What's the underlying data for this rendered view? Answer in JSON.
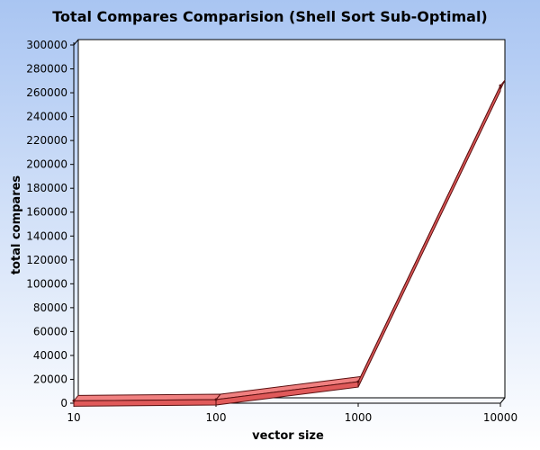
{
  "chart_data": {
    "type": "line",
    "title": "Total Compares Comparision (Shell Sort Sub-Optimal)",
    "xlabel": "vector size",
    "ylabel": "total compares",
    "x_scale": "log",
    "categories": [
      "10",
      "100",
      "1000",
      "10000"
    ],
    "x": [
      10,
      100,
      1000,
      10000
    ],
    "y_ticks": [
      0,
      20000,
      40000,
      60000,
      80000,
      100000,
      120000,
      140000,
      160000,
      180000,
      200000,
      220000,
      240000,
      260000,
      280000,
      300000
    ],
    "ylim": [
      0,
      300000
    ],
    "series": [
      {
        "values": [
          2000,
          3000,
          18000,
          266000
        ]
      }
    ],
    "grid": false,
    "legend": "none",
    "style": "3d-ribbon"
  },
  "colors": {
    "background_top": "#a9c5f2",
    "background_bottom": "#ffffff",
    "plot_area": "#ffffff",
    "ribbon_front": "#e05a5a",
    "ribbon_top": "#f08080",
    "ribbon_outline": "#5a1010",
    "axis": "#000000"
  }
}
